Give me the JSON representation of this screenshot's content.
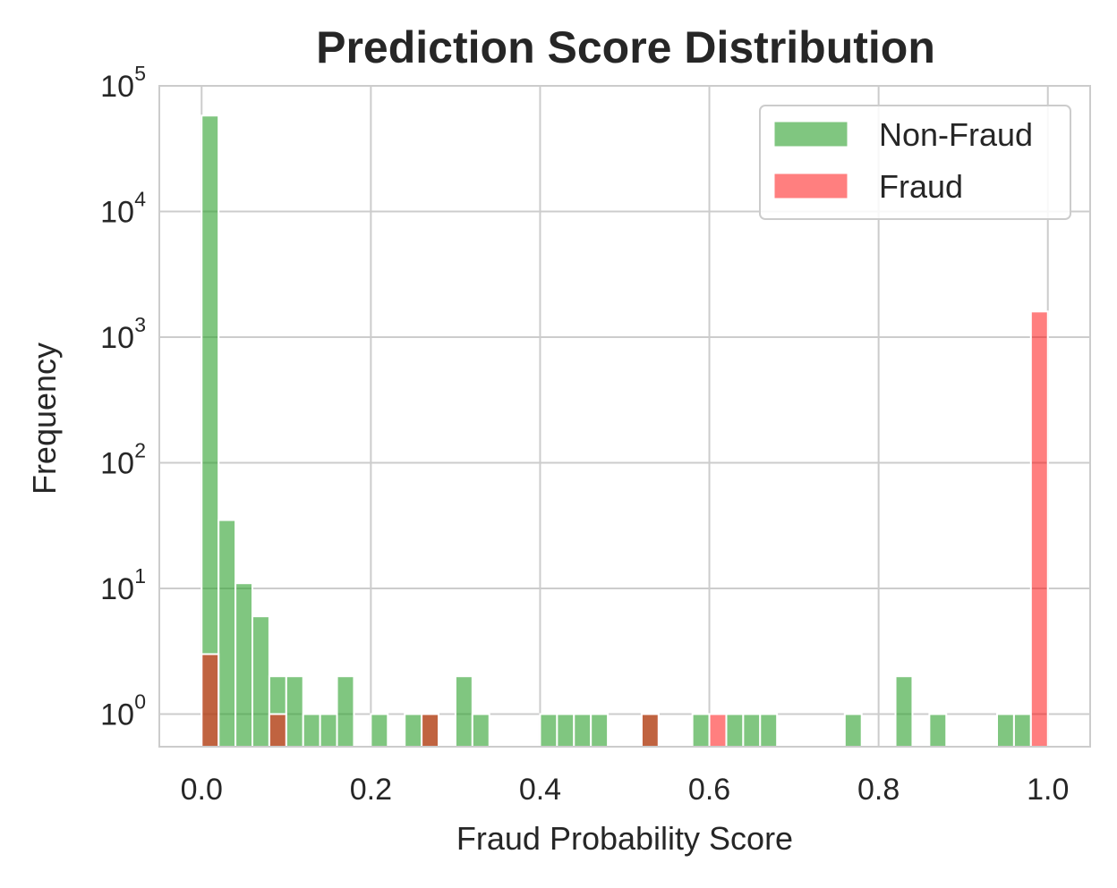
{
  "chart_data": {
    "type": "histogram",
    "title": "Prediction Score Distribution",
    "xlabel": "Fraud Probability Score",
    "ylabel": "Frequency",
    "xlim": [
      -0.05,
      1.05
    ],
    "ylim": [
      0.55,
      100000
    ],
    "yscale": "log",
    "bin_width": 0.02,
    "grid": true,
    "legend_position": "top-right",
    "x_ticks": [
      "0.0",
      "0.2",
      "0.4",
      "0.6",
      "0.8",
      "1.0"
    ],
    "x_tick_values": [
      0.0,
      0.2,
      0.4,
      0.6,
      0.8,
      1.0
    ],
    "y_ticks": [
      {
        "value": 1,
        "base": "10",
        "exp": "0"
      },
      {
        "value": 10,
        "base": "10",
        "exp": "1"
      },
      {
        "value": 100,
        "base": "10",
        "exp": "2"
      },
      {
        "value": 1000,
        "base": "10",
        "exp": "3"
      },
      {
        "value": 10000,
        "base": "10",
        "exp": "4"
      },
      {
        "value": 100000,
        "base": "10",
        "exp": "5"
      }
    ],
    "series": [
      {
        "name": "Non-Fraud",
        "color": "#2ca02c",
        "opacity": 0.6,
        "bins": [
          {
            "x": 0.0,
            "count": 58000
          },
          {
            "x": 0.02,
            "count": 35
          },
          {
            "x": 0.04,
            "count": 11
          },
          {
            "x": 0.06,
            "count": 6
          },
          {
            "x": 0.08,
            "count": 2
          },
          {
            "x": 0.1,
            "count": 2
          },
          {
            "x": 0.12,
            "count": 1
          },
          {
            "x": 0.14,
            "count": 1
          },
          {
            "x": 0.16,
            "count": 2
          },
          {
            "x": 0.2,
            "count": 1
          },
          {
            "x": 0.24,
            "count": 1
          },
          {
            "x": 0.26,
            "count": 1
          },
          {
            "x": 0.3,
            "count": 2
          },
          {
            "x": 0.32,
            "count": 1
          },
          {
            "x": 0.4,
            "count": 1
          },
          {
            "x": 0.42,
            "count": 1
          },
          {
            "x": 0.44,
            "count": 1
          },
          {
            "x": 0.46,
            "count": 1
          },
          {
            "x": 0.52,
            "count": 1
          },
          {
            "x": 0.58,
            "count": 1
          },
          {
            "x": 0.62,
            "count": 1
          },
          {
            "x": 0.64,
            "count": 1
          },
          {
            "x": 0.66,
            "count": 1
          },
          {
            "x": 0.76,
            "count": 1
          },
          {
            "x": 0.82,
            "count": 2
          },
          {
            "x": 0.86,
            "count": 1
          },
          {
            "x": 0.94,
            "count": 1
          },
          {
            "x": 0.96,
            "count": 1
          }
        ]
      },
      {
        "name": "Fraud",
        "color": "#ff0000",
        "opacity": 0.5,
        "bins": [
          {
            "x": 0.0,
            "count": 3
          },
          {
            "x": 0.08,
            "count": 1
          },
          {
            "x": 0.26,
            "count": 1
          },
          {
            "x": 0.52,
            "count": 1
          },
          {
            "x": 0.6,
            "count": 1
          },
          {
            "x": 0.98,
            "count": 1600
          }
        ]
      }
    ]
  }
}
